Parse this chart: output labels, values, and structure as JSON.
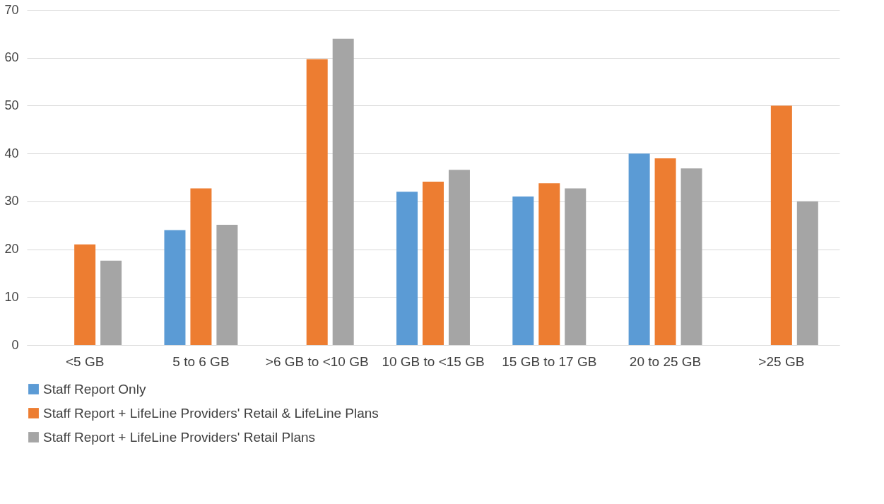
{
  "chart_data": {
    "type": "bar",
    "categories": [
      "<5 GB",
      "5 to 6 GB",
      ">6 GB to <10 GB",
      "10 GB to <15 GB",
      "15 GB to 17 GB",
      "20 to 25 GB",
      ">25 GB"
    ],
    "series": [
      {
        "name": "Staff Report Only",
        "color": "#5b9bd5",
        "values": [
          null,
          24,
          null,
          32,
          31,
          40,
          null
        ]
      },
      {
        "name": "Staff Report + LifeLine Providers' Retail & LifeLine Plans",
        "color": "#ed7d31",
        "values": [
          21,
          32.7,
          59.7,
          34.1,
          33.8,
          39,
          50
        ]
      },
      {
        "name": "Staff Report + LifeLine Providers' Retail Plans",
        "color": "#a5a5a5",
        "values": [
          17.6,
          25.1,
          64,
          36.6,
          32.7,
          36.9,
          30
        ]
      }
    ],
    "ylim": [
      0,
      70
    ],
    "yticks": [
      0,
      10,
      20,
      30,
      40,
      50,
      60,
      70
    ],
    "grid": "y",
    "legend": "bottom"
  }
}
